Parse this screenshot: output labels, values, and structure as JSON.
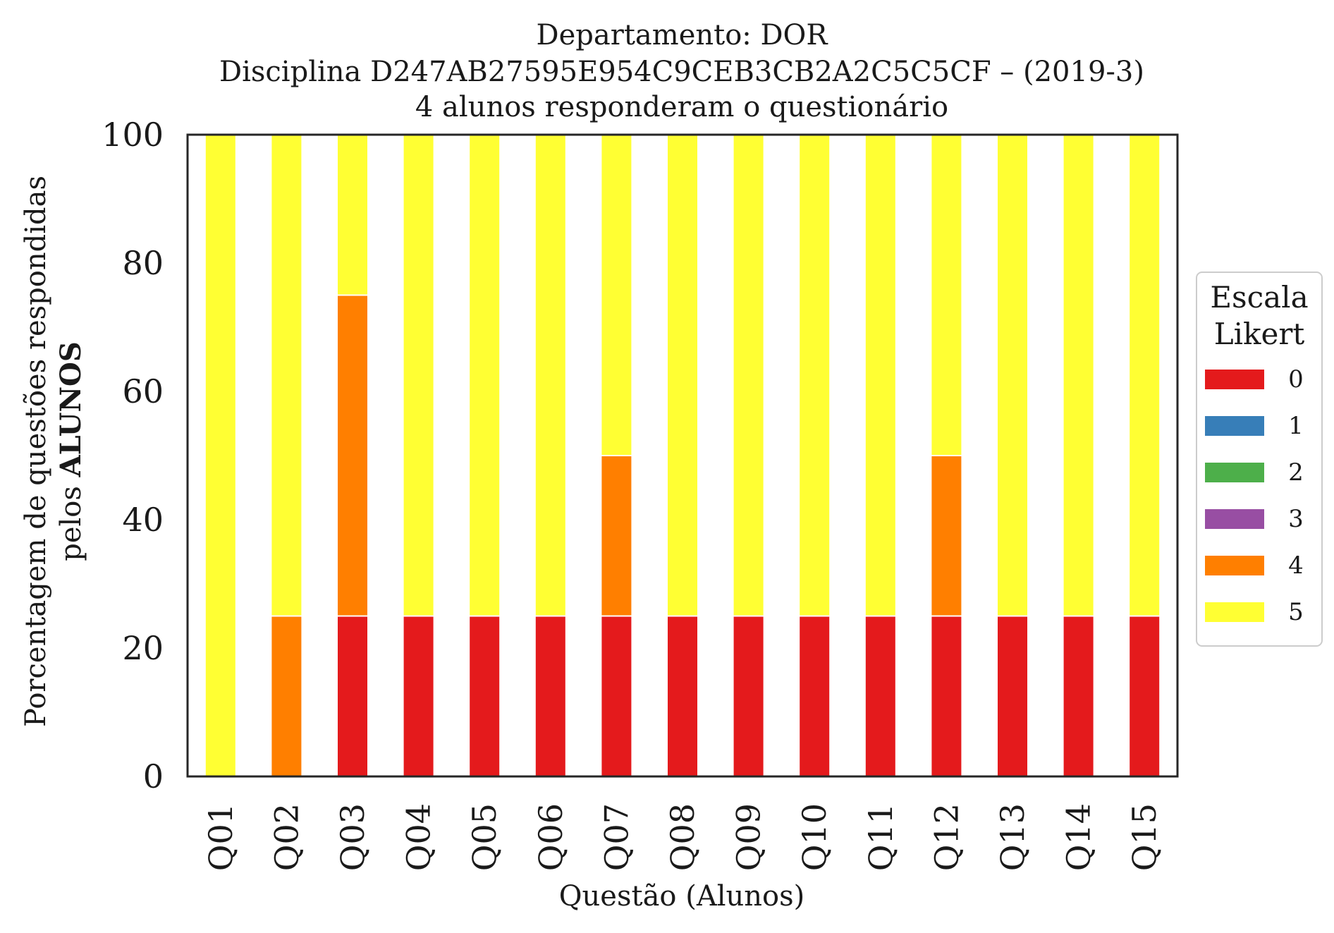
{
  "chart_data": {
    "type": "bar",
    "stacked": true,
    "title_lines": [
      "Departamento: DOR",
      "Disciplina D247AB27595E954C9CEB3CB2A2C5C5CF – (2019-3)",
      "4 alunos responderam o questionário"
    ],
    "xlabel": "Questão (Alunos)",
    "ylabel_line1": "Porcentagem de questões respondidas",
    "ylabel_line2_prefix": "pelos",
    "ylabel_line2_bold": "ALUNOS",
    "ylim": [
      0,
      100
    ],
    "yticks": [
      "0",
      "20",
      "40",
      "60",
      "80",
      "100"
    ],
    "grid": false,
    "legend_placement": "right",
    "legend_title_lines": [
      "Escala",
      "Likert"
    ],
    "categories": [
      "Q01",
      "Q02",
      "Q03",
      "Q04",
      "Q05",
      "Q06",
      "Q07",
      "Q08",
      "Q09",
      "Q10",
      "Q11",
      "Q12",
      "Q13",
      "Q14",
      "Q15"
    ],
    "series": [
      {
        "name": "0",
        "color": "#e41a1c",
        "values": [
          0,
          0,
          25,
          25,
          25,
          25,
          25,
          25,
          25,
          25,
          25,
          25,
          25,
          25,
          25
        ]
      },
      {
        "name": "1",
        "color": "#377eb8",
        "values": [
          0,
          0,
          0,
          0,
          0,
          0,
          0,
          0,
          0,
          0,
          0,
          0,
          0,
          0,
          0
        ]
      },
      {
        "name": "2",
        "color": "#4daf4a",
        "values": [
          0,
          0,
          0,
          0,
          0,
          0,
          0,
          0,
          0,
          0,
          0,
          0,
          0,
          0,
          0
        ]
      },
      {
        "name": "3",
        "color": "#984ea3",
        "values": [
          0,
          0,
          0,
          0,
          0,
          0,
          0,
          0,
          0,
          0,
          0,
          0,
          0,
          0,
          0
        ]
      },
      {
        "name": "4",
        "color": "#ff7f00",
        "values": [
          0,
          25,
          50,
          0,
          0,
          0,
          25,
          0,
          0,
          0,
          0,
          25,
          0,
          0,
          0
        ]
      },
      {
        "name": "5",
        "color": "#ffff33",
        "values": [
          100,
          75,
          25,
          75,
          75,
          75,
          50,
          75,
          75,
          75,
          75,
          50,
          75,
          75,
          75
        ]
      }
    ]
  }
}
